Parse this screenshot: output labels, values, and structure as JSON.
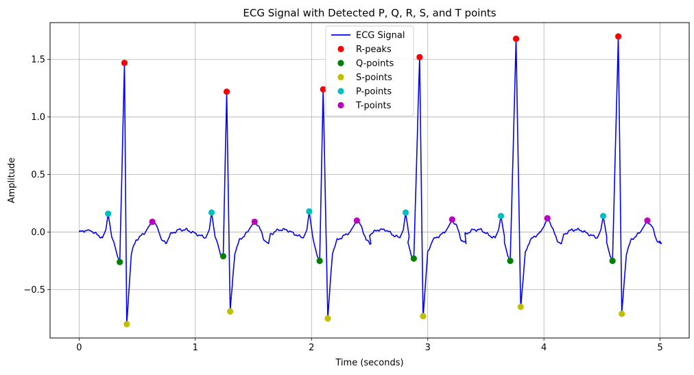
{
  "chart_data": {
    "type": "line",
    "title": "ECG Signal with Detected P, Q, R, S, and T points",
    "xlabel": "Time (seconds)",
    "ylabel": "Amplitude",
    "xlim": [
      -0.25,
      5.25
    ],
    "ylim": [
      -0.92,
      1.82
    ],
    "xticks": [
      0,
      1,
      2,
      3,
      4,
      5
    ],
    "xtick_labels": [
      "0",
      "1",
      "2",
      "3",
      "4",
      "5"
    ],
    "yticks": [
      -0.5,
      0.0,
      0.5,
      1.0,
      1.5
    ],
    "ytick_labels": [
      "−0.5",
      "0.0",
      "0.5",
      "1.0",
      "1.5"
    ],
    "grid": true,
    "legend_position": "top-center",
    "colors": {
      "ecg": "#0000ff",
      "r": "#ff0000",
      "q": "#008000",
      "s": "#bfbf00",
      "p": "#00bfbf",
      "t": "#bf00bf"
    },
    "beats": [
      {
        "p": [
          0.25,
          0.16
        ],
        "q": [
          0.35,
          -0.26
        ],
        "r": [
          0.39,
          1.47
        ],
        "s": [
          0.41,
          -0.8
        ],
        "t": [
          0.63,
          0.09
        ]
      },
      {
        "p": [
          1.14,
          0.17
        ],
        "q": [
          1.24,
          -0.21
        ],
        "r": [
          1.27,
          1.22
        ],
        "s": [
          1.3,
          -0.69
        ],
        "t": [
          1.51,
          0.09
        ]
      },
      {
        "p": [
          1.98,
          0.18
        ],
        "q": [
          2.07,
          -0.25
        ],
        "r": [
          2.1,
          1.24
        ],
        "s": [
          2.14,
          -0.75
        ],
        "t": [
          2.39,
          0.1
        ]
      },
      {
        "p": [
          2.81,
          0.17
        ],
        "q": [
          2.88,
          -0.23
        ],
        "r": [
          2.93,
          1.52
        ],
        "s": [
          2.96,
          -0.73
        ],
        "t": [
          3.21,
          0.11
        ]
      },
      {
        "p": [
          3.63,
          0.14
        ],
        "q": [
          3.71,
          -0.25
        ],
        "r": [
          3.76,
          1.68
        ],
        "s": [
          3.8,
          -0.65
        ],
        "t": [
          4.03,
          0.12
        ]
      },
      {
        "p": [
          4.51,
          0.14
        ],
        "q": [
          4.59,
          -0.25
        ],
        "r": [
          4.64,
          1.7
        ],
        "s": [
          4.67,
          -0.71
        ],
        "t": [
          4.89,
          0.1
        ]
      }
    ],
    "series": [
      {
        "name": "ECG Signal",
        "kind": "line",
        "color_key": "ecg"
      },
      {
        "name": "R-peaks",
        "kind": "marker",
        "color_key": "r",
        "point_key": "r"
      },
      {
        "name": "Q-points",
        "kind": "marker",
        "color_key": "q",
        "point_key": "q"
      },
      {
        "name": "S-points",
        "kind": "marker",
        "color_key": "s",
        "point_key": "s"
      },
      {
        "name": "P-points",
        "kind": "marker",
        "color_key": "p",
        "point_key": "p"
      },
      {
        "name": "T-points",
        "kind": "marker",
        "color_key": "t",
        "point_key": "t"
      }
    ]
  }
}
